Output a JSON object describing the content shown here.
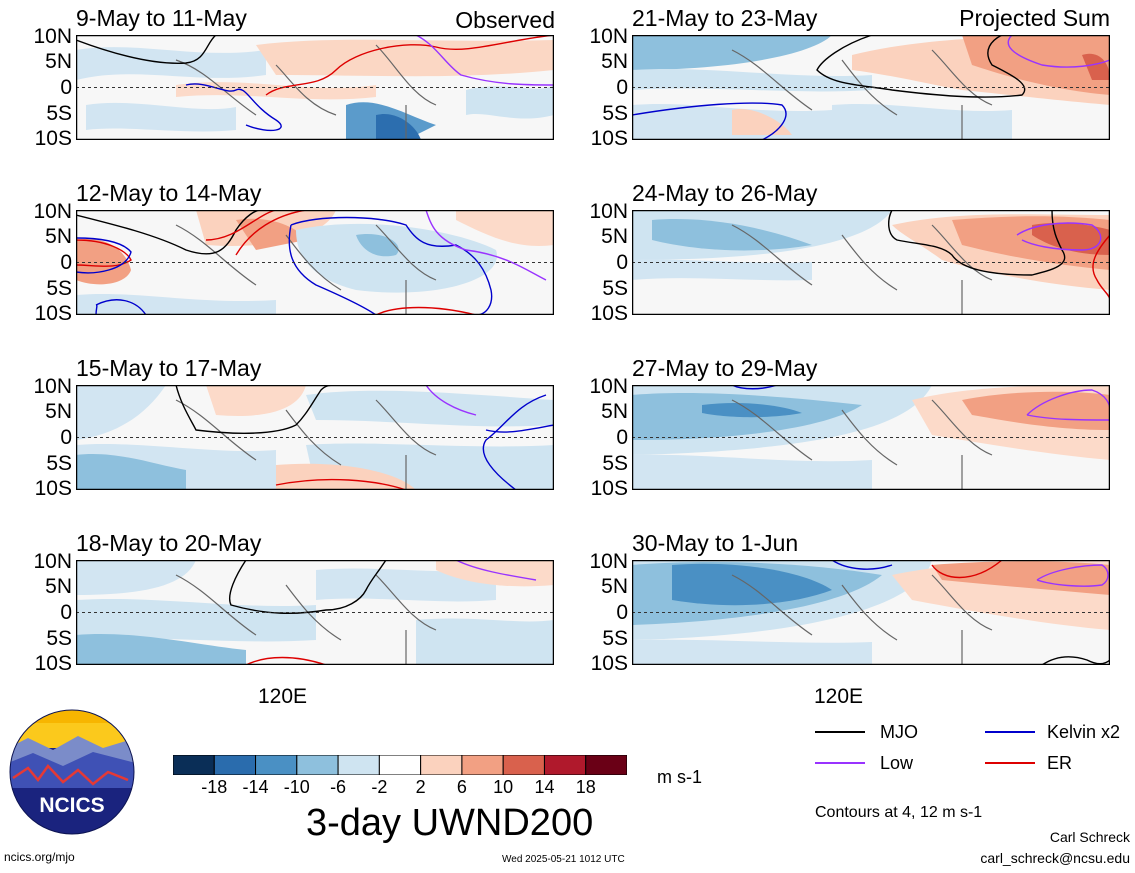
{
  "panels_left": [
    {
      "title": "9-May to 11-May",
      "label": "Observed"
    },
    {
      "title": "12-May to 14-May",
      "label": ""
    },
    {
      "title": "15-May to 17-May",
      "label": ""
    },
    {
      "title": "18-May to 20-May",
      "label": ""
    }
  ],
  "panels_right": [
    {
      "title": "21-May to 23-May",
      "label": "Projected Sum"
    },
    {
      "title": "24-May to 26-May",
      "label": ""
    },
    {
      "title": "27-May to 29-May",
      "label": ""
    },
    {
      "title": "30-May to 1-Jun",
      "label": ""
    }
  ],
  "lat_labels": [
    "10N",
    "5N",
    "0",
    "5S",
    "10S"
  ],
  "lon_label": "120E",
  "colorbar": {
    "ticks": [
      "-18",
      "-14",
      "-10",
      "-6",
      "-2",
      "2",
      "6",
      "10",
      "14",
      "18"
    ],
    "colors": [
      "#0a2e57",
      "#2a6cad",
      "#4a90c4",
      "#8ec0dd",
      "#cfe4f1",
      "#ffffff",
      "#fbd2be",
      "#f2a083",
      "#d9614d",
      "#b0192c",
      "#6a0016"
    ],
    "units": "m s-1"
  },
  "main_title": "3-day UWND200",
  "legend": {
    "mjo": "MJO",
    "kelvin": "Kelvin x2",
    "low": "Low",
    "er": "ER",
    "contours_note": "Contours at 4, 12 m s-1",
    "colors": {
      "mjo": "#000000",
      "kelvin": "#0000cc",
      "low": "#9933ff",
      "er": "#dd0000"
    }
  },
  "logo": {
    "text": "NCICS"
  },
  "footer": {
    "url": "ncics.org/mjo",
    "timestamp": "Wed 2025-05-21 1012 UTC",
    "author": "Carl Schreck",
    "email": "carl_schreck@ncsu.edu"
  }
}
